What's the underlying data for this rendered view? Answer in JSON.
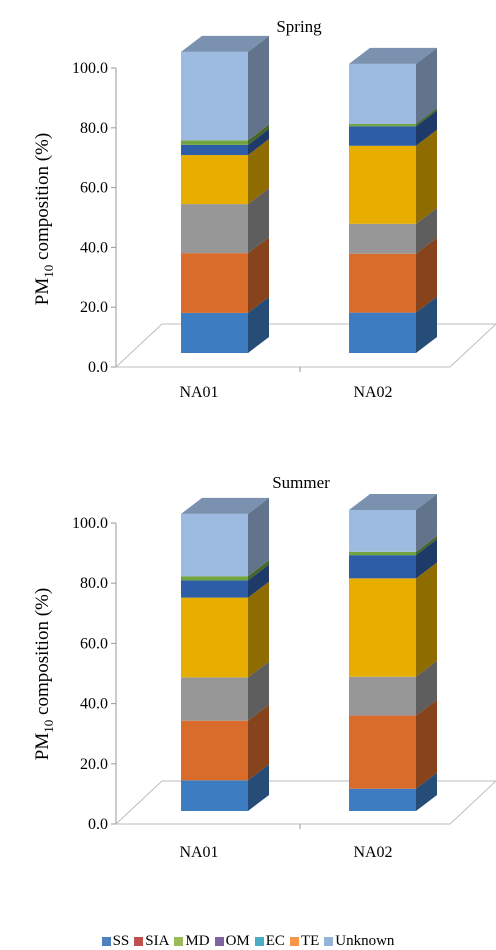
{
  "chart_data": [
    {
      "type": "bar",
      "stacked": true,
      "three_d": true,
      "title": "Spring",
      "ylabel": "PM10 composition (%)",
      "ylabel_main": "PM",
      "ylabel_sub": "10",
      "ylabel_rest": " composition (%)",
      "ylim": [
        0,
        100
      ],
      "yticks": [
        "0.0",
        "20.0",
        "40.0",
        "60.0",
        "80.0",
        "100.0"
      ],
      "categories": [
        "NA01",
        "NA02"
      ],
      "series": [
        {
          "name": "Unknown",
          "values": [
            13.4,
            13.5
          ]
        },
        {
          "name": "SS",
          "values": [
            0,
            0
          ]
        },
        {
          "name": "SIA",
          "values": [
            20,
            19.7
          ]
        },
        {
          "name": "MD",
          "values": [
            16.4,
            10
          ]
        },
        {
          "name": "TE",
          "values": [
            16.4,
            26.1
          ]
        },
        {
          "name": "EC",
          "values": [
            0,
            0
          ]
        },
        {
          "name": "OM",
          "values": [
            3.4,
            6.5
          ]
        },
        {
          "name": "Unknown",
          "values": [
            1.5,
            0.8
          ]
        },
        {
          "name": "Unknown",
          "values": [
            29.6,
            20.1
          ]
        }
      ]
    },
    {
      "type": "bar",
      "stacked": true,
      "three_d": true,
      "title": "Summer",
      "ylabel": "PM10 composition (%)",
      "ylabel_main": "PM",
      "ylabel_sub": "10",
      "ylabel_rest": " composition (%)",
      "ylim": [
        0,
        100
      ],
      "yticks": [
        "0.0",
        "20.0",
        "40.0",
        "60.0",
        "80.0",
        "100.0"
      ],
      "categories": [
        "NA01",
        "NA02"
      ],
      "series": [
        {
          "name": "Unknown",
          "values": [
            10.2,
            7.4
          ]
        },
        {
          "name": "SS",
          "values": [
            0,
            0
          ]
        },
        {
          "name": "SIA",
          "values": [
            19.8,
            24.3
          ]
        },
        {
          "name": "MD",
          "values": [
            14.4,
            12.9
          ]
        },
        {
          "name": "TE",
          "values": [
            26.5,
            32.7
          ]
        },
        {
          "name": "EC",
          "values": [
            0,
            0
          ]
        },
        {
          "name": "OM",
          "values": [
            5.7,
            7.7
          ]
        },
        {
          "name": "Unknown",
          "values": [
            1.4,
            1.1
          ]
        },
        {
          "name": "Unknown",
          "values": [
            20.7,
            13.9
          ]
        }
      ]
    }
  ],
  "colors": {
    "SS": "#4f81bd",
    "SIA": "#c0504d",
    "MD": "#9bbb59",
    "OM": "#8064a2",
    "EC": "#4bacc6",
    "TE": "#f79646",
    "Unknown": "#95b3d7",
    "stack": [
      "#3d7cc0",
      "#3d7cc0",
      "#d96c2b",
      "#979797",
      "#e7ae00",
      "#3d7cc0",
      "#2e5da8",
      "#72a440",
      "#9dbbe0"
    ],
    "axis": "#9a9a9a"
  },
  "legend": {
    "items": [
      {
        "label": "SS",
        "color": "#4f81bd"
      },
      {
        "label": "SIA",
        "color": "#c0504d"
      },
      {
        "label": "MD",
        "color": "#9bbb59"
      },
      {
        "label": "OM",
        "color": "#8064a2"
      },
      {
        "label": "EC",
        "color": "#4bacc6"
      },
      {
        "label": "TE",
        "color": "#f79646"
      },
      {
        "label": "Unknown",
        "color": "#95b3d7"
      }
    ]
  }
}
